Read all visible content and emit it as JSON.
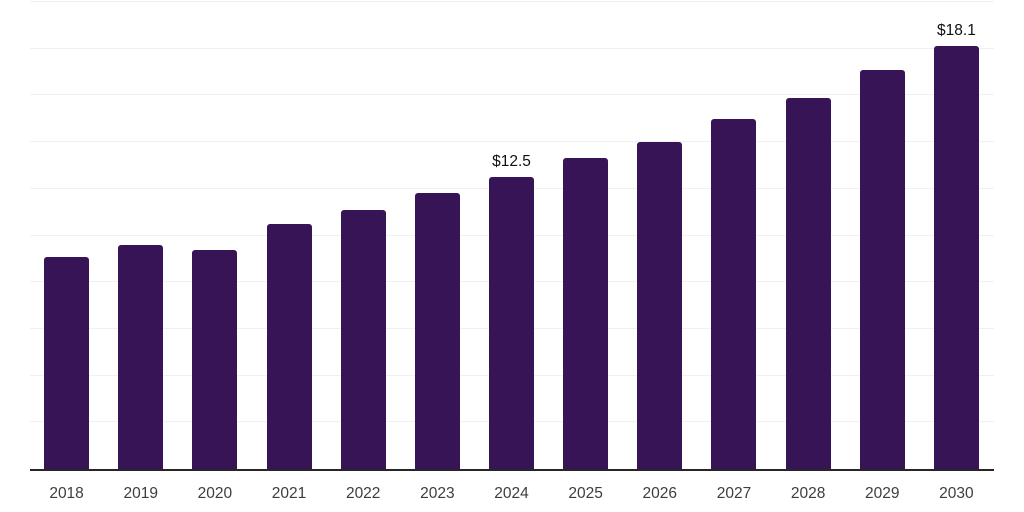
{
  "chart_data": {
    "type": "bar",
    "categories": [
      "2018",
      "2019",
      "2020",
      "2021",
      "2022",
      "2023",
      "2024",
      "2025",
      "2026",
      "2027",
      "2028",
      "2029",
      "2030"
    ],
    "values": [
      9.1,
      9.6,
      9.4,
      10.5,
      11.1,
      11.8,
      12.5,
      13.3,
      14.0,
      15.0,
      15.9,
      17.1,
      18.1
    ],
    "annotations": [
      {
        "category": "2024",
        "label": "$12.5"
      },
      {
        "category": "2030",
        "label": "$18.1"
      }
    ],
    "title": "",
    "xlabel": "",
    "ylabel": "",
    "ylim": [
      0,
      20
    ],
    "gridline_step": 2,
    "grid": "horizontal",
    "legend": "none",
    "y_tick_labels_visible": false,
    "colors": {
      "bar": "#371455",
      "axis_line": "#262626",
      "gridline": "#f0f0f0",
      "value_label": "#111111",
      "tick_label": "#3d3d3d",
      "background": "#ffffff"
    }
  }
}
